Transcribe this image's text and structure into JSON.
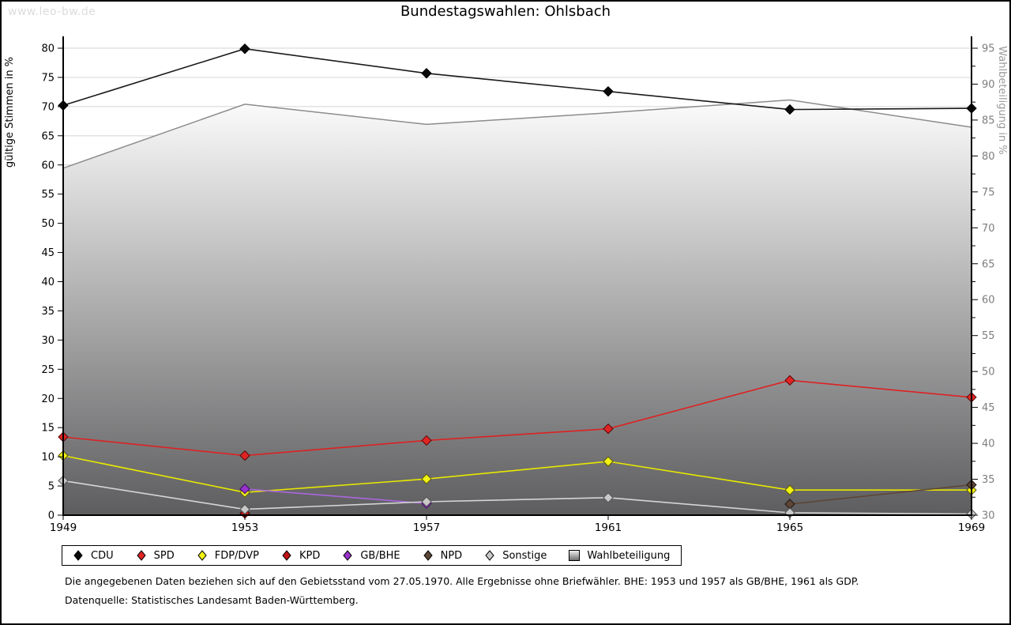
{
  "page": {
    "watermark": "www.leo-bw.de",
    "title": "Bundestagswahlen: Ohlsbach",
    "footnotes": [
      "Die angegebenen Daten beziehen sich auf den Gebietsstand vom 27.05.1970. Alle Ergebnisse ohne Briefwähler. BHE: 1953 und 1957 als GB/BHE, 1961 als GDP.",
      "Datenquelle: Statistisches Landesamt Baden-Württemberg."
    ]
  },
  "chart_data": {
    "type": "line",
    "title": "Bundestagswahlen: Ohlsbach",
    "x": [
      1949,
      1953,
      1957,
      1961,
      1965,
      1969
    ],
    "axes": {
      "left": {
        "label": "gültige Stimmen in %",
        "min": 0,
        "max": 80,
        "step": 5
      },
      "right": {
        "label": "Wahlbeteiligung in %",
        "min": 30,
        "max": 95,
        "step": 5,
        "minor_step": 2.5
      }
    },
    "grid": true,
    "legend_position": "bottom",
    "series": [
      {
        "name": "CDU",
        "axis": "left",
        "style": "line",
        "line_color": "#1a1a1a",
        "fill_color": "#0a0a0a",
        "edge_color": "#000000",
        "values": [
          70.2,
          79.9,
          75.7,
          72.6,
          69.5,
          69.7
        ]
      },
      {
        "name": "SPD",
        "axis": "left",
        "style": "line",
        "line_color": "#dd2222",
        "fill_color": "#e02424",
        "edge_color": "#5a0808",
        "values": [
          13.4,
          10.2,
          12.8,
          14.8,
          23.1,
          20.2
        ]
      },
      {
        "name": "FDP/DVP",
        "axis": "left",
        "style": "line",
        "line_color": "#e8e800",
        "fill_color": "#f2f214",
        "edge_color": "#5a5a08",
        "values": [
          10.2,
          3.9,
          6.2,
          9.2,
          4.3,
          4.3
        ]
      },
      {
        "name": "KPD",
        "axis": "left",
        "style": "line",
        "line_color": "#c01414",
        "fill_color": "#c01414",
        "edge_color": "#400404",
        "values": [
          null,
          0.3,
          null,
          null,
          null,
          null
        ]
      },
      {
        "name": "GB/BHE",
        "axis": "left",
        "style": "line",
        "line_color": "#aa66dd",
        "fill_color": "#9933cc",
        "edge_color": "#3c1060",
        "values": [
          null,
          4.5,
          2.0,
          null,
          null,
          null
        ]
      },
      {
        "name": "NPD",
        "axis": "left",
        "style": "line",
        "line_color": "#5d4637",
        "fill_color": "#5d4637",
        "edge_color": "#241810",
        "values": [
          null,
          null,
          null,
          null,
          1.9,
          5.2
        ]
      },
      {
        "name": "Sonstige",
        "axis": "left",
        "style": "line",
        "line_color": "#d5d5d5",
        "fill_color": "#c9c9c9",
        "edge_color": "#555555",
        "values": [
          5.9,
          1.0,
          2.3,
          3.0,
          0.4,
          0.2
        ]
      },
      {
        "name": "Wahlbeteiligung",
        "axis": "right",
        "style": "area",
        "line_color": "#8c8c8c",
        "fill_top": "#fcfcfc",
        "fill_bottom": "#5d5d5f",
        "edge_color": "#000000",
        "values": [
          78.3,
          87.2,
          84.4,
          86.0,
          87.8,
          84.0
        ]
      }
    ]
  },
  "colors": {
    "grid": "#d4d4d4",
    "axis": "#000000",
    "right_tick_label": "#7d7d7d",
    "right_axis_title": "#9a9a9a",
    "left_label": "#000000"
  }
}
